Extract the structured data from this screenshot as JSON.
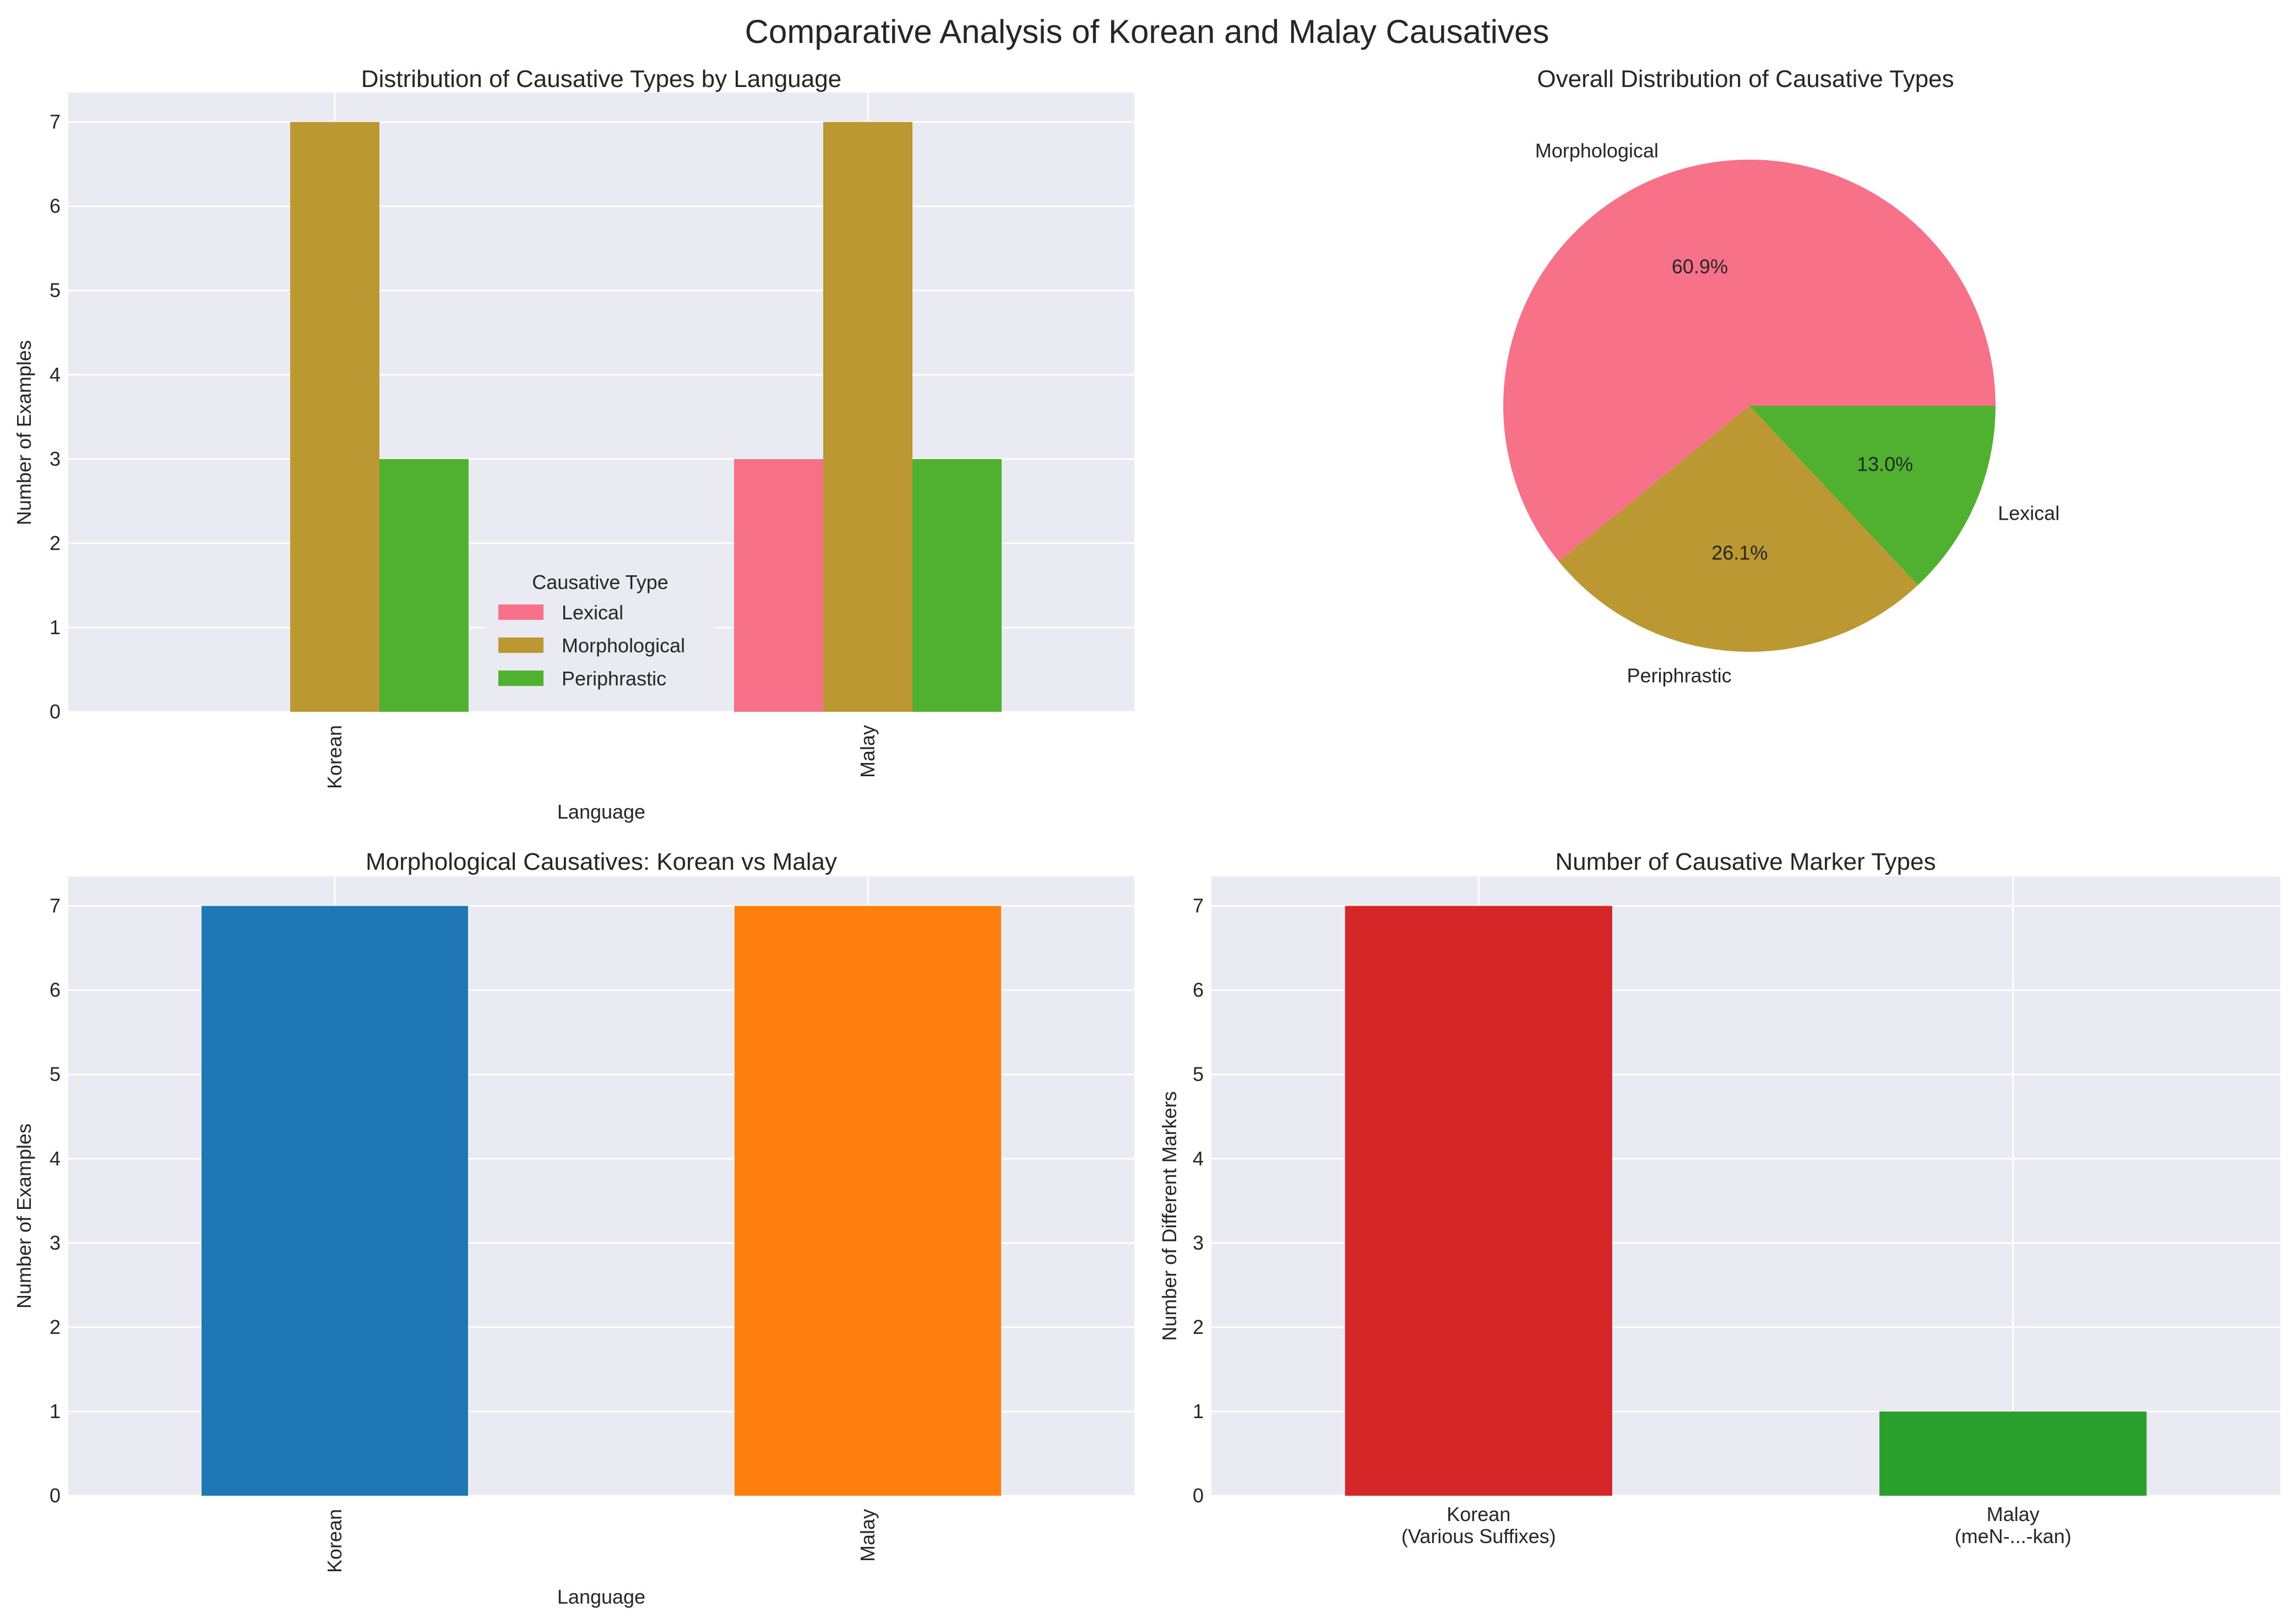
{
  "figure": {
    "title": "Comparative Analysis of Korean and Malay Causatives"
  },
  "colors": {
    "lexical": "#f77189",
    "morphological": "#bb9832",
    "periphrastic": "#50b131",
    "blue": "#1f77b4",
    "orange": "#ff7f0e",
    "red": "#d62728",
    "green": "#2ca02c",
    "axes_bg": "#eaeaf2",
    "grid": "#ffffff"
  },
  "chart_data": [
    {
      "id": "grouped",
      "type": "bar",
      "title": "Distribution of Causative Types by Language",
      "xlabel": "Language",
      "ylabel": "Number of Examples",
      "categories": [
        "Korean",
        "Malay"
      ],
      "series": [
        {
          "name": "Lexical",
          "values": [
            0,
            3
          ],
          "color": "#f77189"
        },
        {
          "name": "Morphological",
          "values": [
            7,
            7
          ],
          "color": "#bb9832"
        },
        {
          "name": "Periphrastic",
          "values": [
            3,
            3
          ],
          "color": "#50b131"
        }
      ],
      "ylim": [
        0,
        7.35
      ],
      "yticks": [
        0,
        1,
        2,
        3,
        4,
        5,
        6,
        7
      ],
      "legend": {
        "title": "Causative Type",
        "placement": "lower center"
      },
      "grid": true
    },
    {
      "id": "pie",
      "type": "pie",
      "title": "Overall Distribution of Causative Types",
      "labels": [
        "Morphological",
        "Periphrastic",
        "Lexical"
      ],
      "values": [
        60.9,
        26.1,
        13.0
      ],
      "pct_labels": [
        "60.9%",
        "26.1%",
        "13.0%"
      ],
      "colors": [
        "#f77189",
        "#bb9832",
        "#50b131"
      ]
    },
    {
      "id": "morph",
      "type": "bar",
      "title": "Morphological Causatives: Korean vs Malay",
      "xlabel": "Language",
      "ylabel": "Number of Examples",
      "categories": [
        "Korean",
        "Malay"
      ],
      "values": [
        7,
        7
      ],
      "colors": [
        "#1f77b4",
        "#ff7f0e"
      ],
      "ylim": [
        0,
        7.35
      ],
      "yticks": [
        0,
        1,
        2,
        3,
        4,
        5,
        6,
        7
      ],
      "grid": true
    },
    {
      "id": "markers",
      "type": "bar",
      "title": "Number of Causative Marker Types",
      "xlabel": "",
      "ylabel": "Number of Different Markers",
      "categories": [
        "Korean\n(Various Suffixes)",
        "Malay\n(meN-...-kan)"
      ],
      "values": [
        7,
        1
      ],
      "colors": [
        "#d62728",
        "#2ca02c"
      ],
      "ylim": [
        0,
        7.35
      ],
      "yticks": [
        0,
        1,
        2,
        3,
        4,
        5,
        6,
        7
      ],
      "grid": true
    }
  ]
}
